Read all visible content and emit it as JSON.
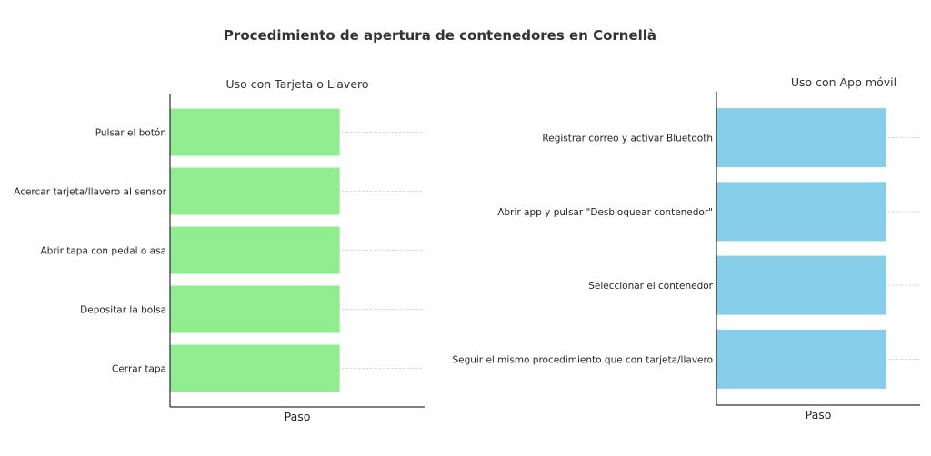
{
  "title": "Procedimiento de apertura de contenedores en Cornellà",
  "chart_data": [
    {
      "type": "bar",
      "orientation": "horizontal",
      "title": "Uso con Tarjeta o Llavero",
      "xlabel": "Paso",
      "ylabel": "",
      "categories": [
        "Pulsar el botón",
        "Acercar tarjeta/llavero al sensor",
        "Abrir tapa con pedal o asa",
        "Depositar la bolsa",
        "Cerrar tapa"
      ],
      "values": [
        1,
        1,
        1,
        1,
        1
      ],
      "xlim": [
        0,
        1.5
      ],
      "color": "#90ee90",
      "grid": "x-dashed",
      "legend": "none"
    },
    {
      "type": "bar",
      "orientation": "horizontal",
      "title": "Uso con App móvil",
      "xlabel": "Paso",
      "ylabel": "",
      "categories": [
        "Registrar correo y activar Bluetooth",
        "Abrir app y pulsar \"Desbloquear contenedor\"",
        "Seleccionar el contenedor",
        "Seguir el mismo procedimiento que con tarjeta/llavero"
      ],
      "values": [
        1,
        1,
        1,
        1
      ],
      "xlim": [
        0,
        1.2
      ],
      "color": "#87ceeb",
      "grid": "x-dashed",
      "legend": "none"
    }
  ]
}
